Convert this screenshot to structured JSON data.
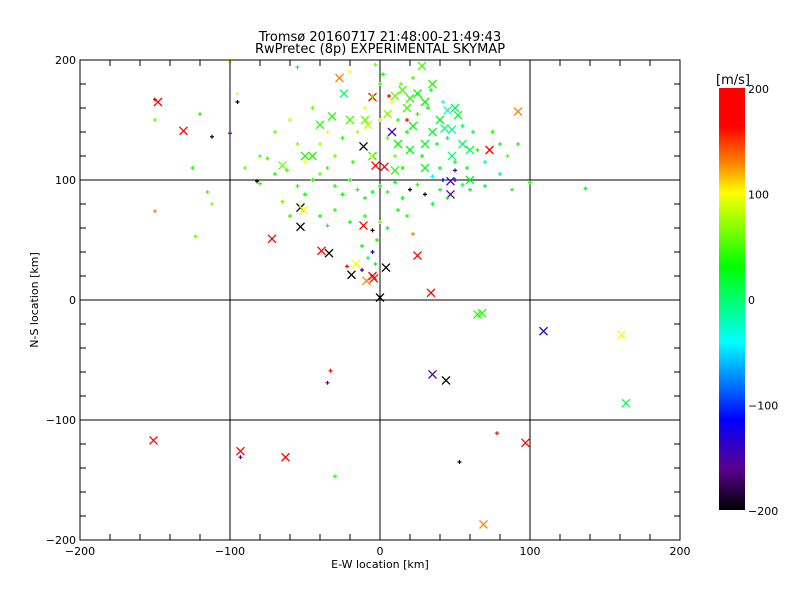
{
  "chart_data": {
    "type": "scatter",
    "title": "Tromsø 20160717 21:48:00-21:49:43",
    "subtitle": "RwPretec (8p) EXPERIMENTAL SKYMAP",
    "xlabel": "E-W location [km]",
    "ylabel": "N-S location [km]",
    "xlim": [
      -200,
      200
    ],
    "ylim": [
      -200,
      200
    ],
    "xticks": [
      "-200",
      "-100",
      "0",
      "100",
      "200"
    ],
    "yticks": [
      "-200",
      "-100",
      "0",
      "100",
      "200"
    ],
    "grid": true,
    "colorbar": {
      "label": "[m/s]",
      "range": [
        -200,
        200
      ],
      "ticks": [
        "200",
        "100",
        "0",
        "-100",
        "-200"
      ],
      "stops": [
        [
          -200,
          "#000000"
        ],
        [
          -160,
          "#5a0090"
        ],
        [
          -114,
          "#0000ff"
        ],
        [
          -41,
          "#00ffff"
        ],
        [
          31,
          "#00ff00"
        ],
        [
          101,
          "#ffff00"
        ],
        [
          126,
          "#ff9000"
        ],
        [
          164,
          "#ff0000"
        ],
        [
          200,
          "#ff0000"
        ]
      ]
    },
    "point_format": [
      "x_km",
      "y_km",
      "velocity_m_s",
      "large_marker"
    ],
    "points": [
      [
        -148,
        165,
        180,
        1
      ],
      [
        -131,
        141,
        180,
        1
      ],
      [
        -27,
        185,
        130,
        1
      ],
      [
        73,
        125,
        180,
        1
      ],
      [
        92,
        157,
        130,
        1
      ],
      [
        -72,
        51,
        180,
        1
      ],
      [
        -39,
        41,
        180,
        1
      ],
      [
        -34,
        39,
        -200,
        1
      ],
      [
        -53,
        61,
        -200,
        1
      ],
      [
        -53,
        77,
        -200,
        1
      ],
      [
        -51,
        75,
        100,
        1
      ],
      [
        -19,
        21,
        -200,
        1
      ],
      [
        -5,
        20,
        180,
        1
      ],
      [
        -4,
        18,
        180,
        1
      ],
      [
        4,
        27,
        -200,
        1
      ],
      [
        -11,
        62,
        180,
        1
      ],
      [
        25,
        37,
        180,
        1
      ],
      [
        34,
        6,
        180,
        1
      ],
      [
        -11,
        128,
        -200,
        1
      ],
      [
        -5,
        169,
        180,
        1
      ],
      [
        -3,
        112,
        180,
        1
      ],
      [
        3,
        111,
        180,
        1
      ],
      [
        47,
        99,
        -150,
        1
      ],
      [
        47,
        88,
        -150,
        1
      ],
      [
        8,
        140,
        -150,
        1
      ],
      [
        -24,
        172,
        0,
        1
      ],
      [
        -9,
        16,
        130,
        1
      ],
      [
        -16,
        30,
        100,
        1
      ],
      [
        0,
        2,
        -200,
        1
      ],
      [
        65,
        -12,
        40,
        1
      ],
      [
        68,
        -11,
        40,
        1
      ],
      [
        35,
        -62,
        -150,
        1
      ],
      [
        44,
        -67,
        -200,
        1
      ],
      [
        109,
        -26,
        -120,
        1
      ],
      [
        161,
        -29,
        100,
        1
      ],
      [
        164,
        -86,
        10,
        1
      ],
      [
        -151,
        -117,
        180,
        1
      ],
      [
        -93,
        -126,
        180,
        1
      ],
      [
        -63,
        -131,
        180,
        1
      ],
      [
        97,
        -119,
        180,
        1
      ],
      [
        69,
        -187,
        130,
        1
      ],
      [
        10,
        170,
        60,
        1
      ],
      [
        15,
        175,
        50,
        1
      ],
      [
        20,
        168,
        40,
        1
      ],
      [
        25,
        172,
        30,
        1
      ],
      [
        18,
        160,
        50,
        1
      ],
      [
        30,
        165,
        30,
        1
      ],
      [
        5,
        155,
        70,
        1
      ],
      [
        -10,
        150,
        60,
        1
      ],
      [
        -20,
        150,
        50,
        1
      ],
      [
        -40,
        146,
        40,
        1
      ],
      [
        -50,
        120,
        40,
        1
      ],
      [
        -45,
        120,
        40,
        1
      ],
      [
        -65,
        112,
        60,
        1
      ],
      [
        35,
        140,
        20,
        1
      ],
      [
        40,
        150,
        20,
        1
      ],
      [
        50,
        160,
        10,
        1
      ],
      [
        55,
        130,
        0,
        1
      ],
      [
        60,
        125,
        10,
        1
      ],
      [
        48,
        142,
        -10,
        1
      ],
      [
        43,
        143,
        0,
        1
      ],
      [
        30,
        130,
        20,
        1
      ],
      [
        22,
        145,
        30,
        1
      ],
      [
        12,
        130,
        30,
        1
      ],
      [
        -5,
        120,
        40,
        1
      ],
      [
        28,
        195,
        50,
        1
      ],
      [
        -8,
        146,
        80,
        1
      ],
      [
        35,
        180,
        40,
        1
      ],
      [
        45,
        158,
        -20,
        1
      ],
      [
        52,
        154,
        20,
        1
      ],
      [
        48,
        120,
        0,
        1
      ],
      [
        30,
        110,
        20,
        1
      ],
      [
        10,
        108,
        40,
        1
      ],
      [
        -32,
        153,
        40,
        1
      ],
      [
        20,
        125,
        30,
        1
      ],
      [
        60,
        100,
        20,
        1
      ],
      [
        -150,
        167,
        180,
        0
      ],
      [
        -112,
        136,
        -200,
        0
      ],
      [
        -100,
        139,
        -150,
        0
      ],
      [
        -95,
        165,
        -200,
        0
      ],
      [
        -95,
        172,
        100,
        0
      ],
      [
        -120,
        155,
        40,
        0
      ],
      [
        -150,
        74,
        130,
        0
      ],
      [
        -123,
        53,
        60,
        0
      ],
      [
        -112,
        80,
        70,
        0
      ],
      [
        -115,
        90,
        50,
        0
      ],
      [
        -82,
        99,
        -200,
        0
      ],
      [
        -90,
        110,
        60,
        0
      ],
      [
        -80,
        97,
        40,
        0
      ],
      [
        -75,
        118,
        50,
        0
      ],
      [
        -70,
        105,
        40,
        0
      ],
      [
        -62,
        108,
        50,
        0
      ],
      [
        -55,
        95,
        40,
        0
      ],
      [
        -50,
        88,
        30,
        0
      ],
      [
        -45,
        100,
        40,
        0
      ],
      [
        -40,
        105,
        60,
        0
      ],
      [
        -35,
        110,
        50,
        0
      ],
      [
        -30,
        95,
        40,
        0
      ],
      [
        -25,
        88,
        30,
        0
      ],
      [
        -20,
        100,
        40,
        0
      ],
      [
        -15,
        92,
        40,
        0
      ],
      [
        -10,
        85,
        30,
        0
      ],
      [
        -5,
        90,
        20,
        0
      ],
      [
        0,
        95,
        30,
        0
      ],
      [
        5,
        90,
        40,
        0
      ],
      [
        10,
        98,
        20,
        0
      ],
      [
        15,
        85,
        30,
        0
      ],
      [
        20,
        92,
        -200,
        0
      ],
      [
        25,
        96,
        40,
        0
      ],
      [
        30,
        88,
        -200,
        0
      ],
      [
        35,
        80,
        20,
        0
      ],
      [
        40,
        92,
        10,
        0
      ],
      [
        45,
        85,
        20,
        0
      ],
      [
        50,
        100,
        -120,
        0
      ],
      [
        55,
        96,
        10,
        0
      ],
      [
        60,
        92,
        30,
        0
      ],
      [
        70,
        95,
        20,
        0
      ],
      [
        80,
        105,
        0,
        0
      ],
      [
        100,
        98,
        40,
        0
      ],
      [
        137,
        93,
        20,
        0
      ],
      [
        88,
        92,
        40,
        0
      ],
      [
        -60,
        70,
        40,
        0
      ],
      [
        -65,
        82,
        60,
        0
      ],
      [
        -40,
        70,
        30,
        0
      ],
      [
        -30,
        75,
        40,
        0
      ],
      [
        -20,
        65,
        30,
        0
      ],
      [
        -10,
        70,
        40,
        0
      ],
      [
        -5,
        58,
        -200,
        0
      ],
      [
        0,
        65,
        60,
        0
      ],
      [
        -2,
        50,
        30,
        0
      ],
      [
        -5,
        40,
        -120,
        0
      ],
      [
        -8,
        35,
        0,
        0
      ],
      [
        -12,
        45,
        30,
        0
      ],
      [
        -3,
        30,
        20,
        0
      ],
      [
        -22,
        28,
        180,
        0
      ],
      [
        -12,
        25,
        -150,
        0
      ],
      [
        5,
        60,
        20,
        0
      ],
      [
        12,
        75,
        30,
        0
      ],
      [
        18,
        70,
        40,
        0
      ],
      [
        22,
        55,
        130,
        0
      ],
      [
        -35,
        62,
        40,
        0
      ],
      [
        -80,
        120,
        60,
        0
      ],
      [
        -70,
        140,
        60,
        0
      ],
      [
        -60,
        150,
        80,
        0
      ],
      [
        -55,
        130,
        70,
        0
      ],
      [
        -45,
        160,
        60,
        0
      ],
      [
        -40,
        130,
        80,
        0
      ],
      [
        -35,
        140,
        100,
        0
      ],
      [
        -30,
        120,
        60,
        0
      ],
      [
        -25,
        135,
        40,
        0
      ],
      [
        -15,
        140,
        80,
        0
      ],
      [
        -10,
        160,
        100,
        0
      ],
      [
        -5,
        170,
        60,
        0
      ],
      [
        0,
        180,
        40,
        0
      ],
      [
        0,
        150,
        80,
        0
      ],
      [
        5,
        135,
        60,
        0
      ],
      [
        8,
        165,
        100,
        0
      ],
      [
        12,
        150,
        40,
        0
      ],
      [
        14,
        180,
        60,
        0
      ],
      [
        18,
        140,
        30,
        0
      ],
      [
        22,
        185,
        50,
        0
      ],
      [
        25,
        155,
        40,
        0
      ],
      [
        28,
        120,
        30,
        0
      ],
      [
        32,
        160,
        30,
        0
      ],
      [
        34,
        175,
        20,
        0
      ],
      [
        38,
        130,
        20,
        0
      ],
      [
        40,
        110,
        30,
        0
      ],
      [
        42,
        165,
        -40,
        0
      ],
      [
        45,
        135,
        0,
        0
      ],
      [
        50,
        115,
        20,
        0
      ],
      [
        55,
        145,
        10,
        0
      ],
      [
        58,
        110,
        30,
        0
      ],
      [
        62,
        140,
        20,
        0
      ],
      [
        65,
        125,
        40,
        0
      ],
      [
        70,
        115,
        -10,
        0
      ],
      [
        75,
        140,
        40,
        0
      ],
      [
        80,
        130,
        20,
        0
      ],
      [
        85,
        120,
        60,
        0
      ],
      [
        92,
        130,
        40,
        0
      ],
      [
        -3,
        196,
        60,
        0
      ],
      [
        2,
        188,
        30,
        0
      ],
      [
        -20,
        190,
        100,
        0
      ],
      [
        -55,
        194,
        20,
        0
      ],
      [
        -100,
        198,
        100,
        0
      ],
      [
        -150,
        150,
        60,
        0
      ],
      [
        -125,
        110,
        40,
        0
      ],
      [
        6,
        170,
        180,
        0
      ],
      [
        18,
        150,
        180,
        0
      ],
      [
        -6,
        120,
        100,
        0
      ],
      [
        10,
        120,
        60,
        0
      ],
      [
        15,
        110,
        40,
        0
      ],
      [
        -18,
        115,
        40,
        0
      ],
      [
        35,
        103,
        -40,
        0
      ],
      [
        42,
        100,
        -120,
        0
      ],
      [
        50,
        108,
        -150,
        0
      ],
      [
        -33,
        -59,
        180,
        0
      ],
      [
        -35,
        -69,
        -150,
        0
      ],
      [
        53,
        -135,
        -200,
        0
      ],
      [
        78,
        -111,
        180,
        0
      ],
      [
        -93,
        -131,
        -150,
        0
      ],
      [
        -30,
        -147,
        40,
        0
      ],
      [
        -50,
        115,
        100,
        0
      ]
    ]
  }
}
